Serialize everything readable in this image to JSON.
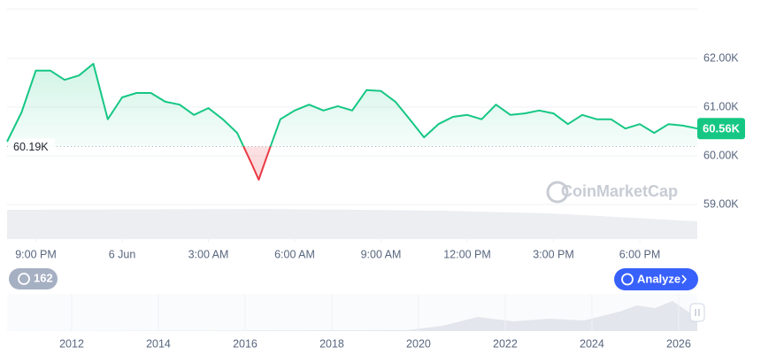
{
  "chart_data": {
    "type": "line",
    "color": "#16c784",
    "down_color": "#ea3943",
    "x": [
      0,
      0.5,
      1,
      1.5,
      2,
      2.5,
      3,
      3.5,
      4,
      4.5,
      5,
      5.5,
      6,
      6.5,
      7,
      7.5,
      8,
      8.5,
      8.75,
      9,
      9.5,
      10,
      10.5,
      11,
      11.5,
      12,
      12.5,
      13,
      13.5,
      14,
      14.5,
      15,
      15.5,
      16,
      16.5,
      17,
      17.5,
      18,
      18.5,
      19,
      19.5,
      20,
      20.5,
      21,
      21.5,
      22,
      22.5,
      23,
      23.5,
      24
    ],
    "values": [
      60290,
      60890,
      61750,
      61750,
      61560,
      61650,
      61890,
      60750,
      61200,
      61290,
      61290,
      61110,
      61050,
      60840,
      60980,
      60750,
      60470,
      59840,
      59510,
      59930,
      60750,
      60930,
      61050,
      60930,
      61020,
      60930,
      61350,
      61330,
      61110,
      60750,
      60380,
      60650,
      60800,
      60840,
      60750,
      61050,
      60840,
      60870,
      60930,
      60870,
      60650,
      60840,
      60750,
      60750,
      60560,
      60650,
      60470,
      60650,
      60620,
      60560
    ],
    "xlim": [
      0,
      24
    ],
    "xticks": [
      {
        "value": 1,
        "label": "9:00 PM"
      },
      {
        "value": 4,
        "label": "6 Jun"
      },
      {
        "value": 7,
        "label": "3:00 AM"
      },
      {
        "value": 10,
        "label": "6:00 AM"
      },
      {
        "value": 13,
        "label": "9:00 AM"
      },
      {
        "value": 16,
        "label": "12:00 PM"
      },
      {
        "value": 19,
        "label": "3:00 PM"
      },
      {
        "value": 22,
        "label": "6:00 PM"
      }
    ],
    "ylim": [
      58291,
      63018
    ],
    "yticks": [
      {
        "value": 59000,
        "label": "59.00K"
      },
      {
        "value": 60000,
        "label": "60.00K"
      },
      {
        "value": 61000,
        "label": "61.00K"
      },
      {
        "value": 62000,
        "label": "62.00K"
      }
    ],
    "grid": true,
    "baseline": {
      "value": 60190,
      "label": "60.19K"
    },
    "current_price": {
      "value": 60560,
      "label": "60.56K"
    },
    "watermark": "CoinMarketCap",
    "history_button": "162",
    "analyze_button": "Analyze",
    "navigator": {
      "xlim": [
        2010.51,
        2026.43
      ],
      "xticks": [
        2012,
        2014,
        2016,
        2018,
        2020,
        2022,
        2024,
        2026
      ]
    }
  }
}
